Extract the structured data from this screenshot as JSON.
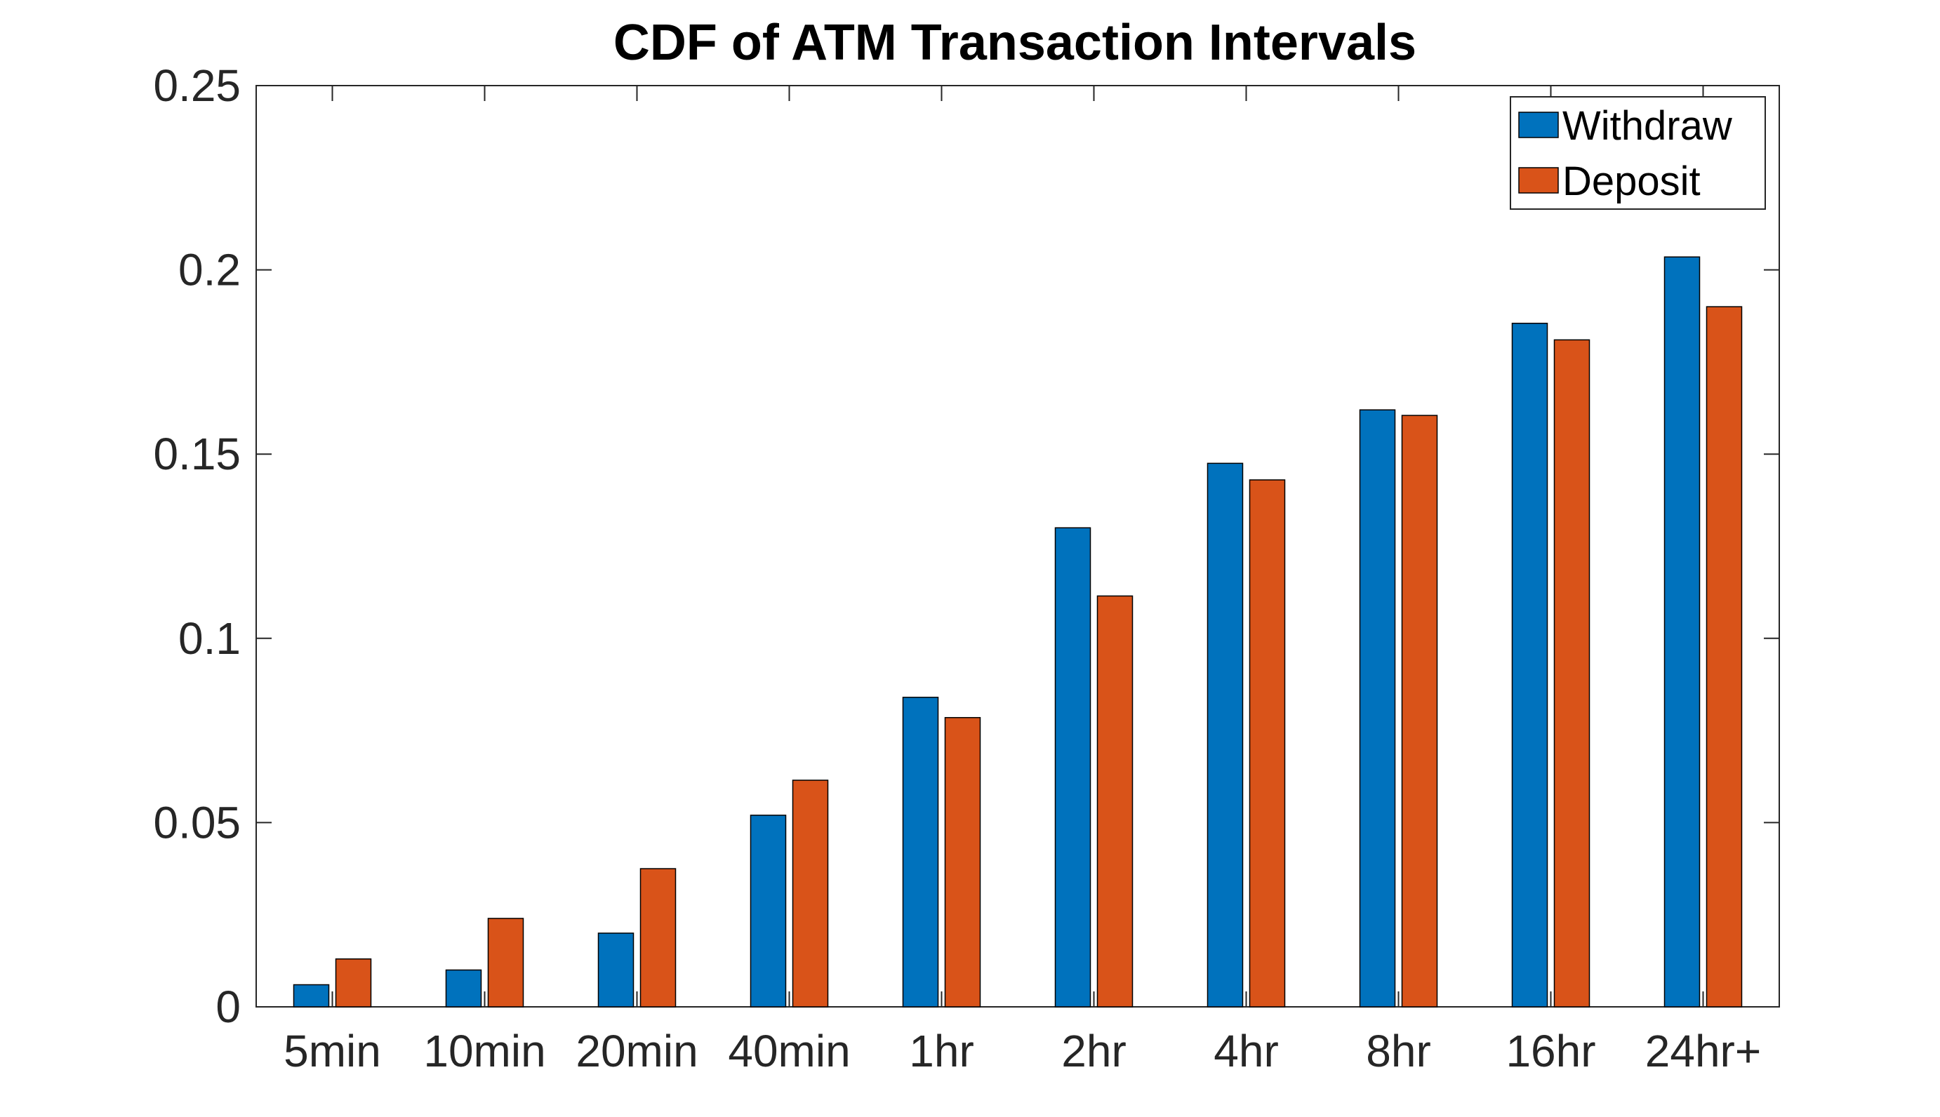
{
  "chart_data": {
    "type": "bar",
    "title": "CDF of ATM Transaction Intervals",
    "xlabel": "",
    "ylabel": "",
    "categories": [
      "5min",
      "10min",
      "20min",
      "40min",
      "1hr",
      "2hr",
      "4hr",
      "8hr",
      "16hr",
      "24hr+"
    ],
    "series": [
      {
        "name": "Withdraw",
        "color": "#0072BD",
        "values": [
          0.006,
          0.01,
          0.02,
          0.052,
          0.084,
          0.13,
          0.1475,
          0.162,
          0.1855,
          0.2035
        ]
      },
      {
        "name": "Deposit",
        "color": "#D95319",
        "values": [
          0.013,
          0.024,
          0.0375,
          0.0615,
          0.0785,
          0.1115,
          0.143,
          0.1605,
          0.181,
          0.19
        ]
      }
    ],
    "ylim": [
      0,
      0.25
    ],
    "yticks": [
      0,
      0.05,
      0.1,
      0.15,
      0.2,
      0.25
    ],
    "ytick_labels": [
      "0",
      "0.05",
      "0.1",
      "0.15",
      "0.2",
      "0.25"
    ],
    "grid": false,
    "legend_position": "top-right"
  }
}
